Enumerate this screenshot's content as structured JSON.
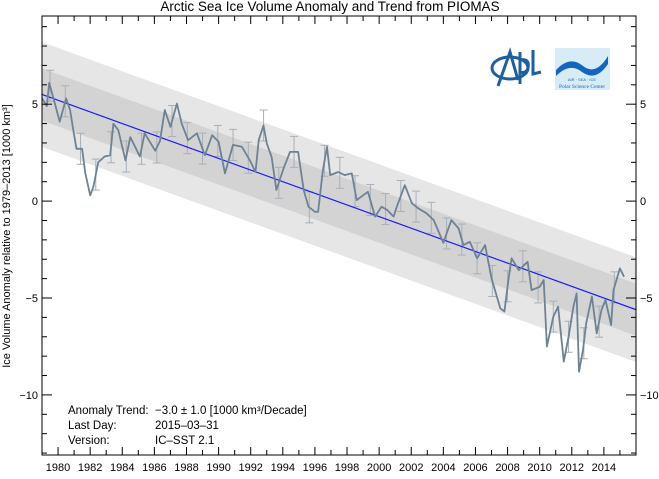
{
  "chart_data": {
    "type": "line",
    "title": "Arctic Sea Ice Volume Anomaly and Trend from PIOMAS",
    "ylabel": "Ice Volume Anomaly relative to 1979–2013 [1000 km³]",
    "xlabel": "",
    "xlim": [
      1979,
      2016
    ],
    "ylim": [
      -13.1,
      9.55
    ],
    "x_tick_labels": [
      "1980",
      "1982",
      "1984",
      "1986",
      "1988",
      "1990",
      "1992",
      "1994",
      "1996",
      "1998",
      "2000",
      "2002",
      "2004",
      "2006",
      "2008",
      "2010",
      "2012",
      "2014"
    ],
    "y_tick_labels": [
      "5",
      "0",
      "−5",
      "−10"
    ],
    "y_tick_values": [
      5,
      0,
      -5,
      -10
    ],
    "grid": false,
    "colors": {
      "anomaly": "#6e8294",
      "trend": "#1a1aff",
      "inner_band": "#d3d3d3",
      "outer_band": "#e6e6e6",
      "error_bar": "#a8b0b8"
    },
    "trend": {
      "start_year": 1979,
      "start_value": 5.5,
      "slope_per_decade": -3.0,
      "inner_band": 1.35,
      "outer_band": 2.7
    },
    "error_bar_halfwidth": 0.8,
    "series": [
      {
        "x": [
          1979.0,
          1979.3,
          1979.45,
          1979.8,
          1980.1,
          1980.5,
          1980.75,
          1980.95,
          1981.15,
          1981.5,
          1981.7,
          1982.0,
          1982.2,
          1982.5,
          1982.9,
          1983.25,
          1983.45,
          1983.75,
          1984.2,
          1984.5,
          1985.1,
          1985.4,
          1986.05,
          1986.35,
          1986.65,
          1987.0,
          1987.4,
          1987.7,
          1988.1,
          1988.65,
          1989.15,
          1989.6,
          1990.0,
          1990.4,
          1990.9,
          1991.45,
          1991.95,
          1992.3,
          1992.5,
          1992.8,
          1993.0,
          1993.3,
          1993.6,
          1994.05,
          1994.45,
          1994.95,
          1995.3,
          1995.6,
          1996.0,
          1996.2,
          1996.5,
          1996.75,
          1996.95,
          1997.45,
          1997.85,
          1998.3,
          1998.6,
          1999.0,
          1999.3,
          1999.75,
          2000.15,
          2000.5,
          2000.9,
          2001.1,
          2001.6,
          2002.05,
          2002.45,
          2002.95,
          2003.4,
          2004.0,
          2004.2,
          2004.5,
          2004.95,
          2005.25,
          2005.65,
          2006.1,
          2006.6,
          2007.0,
          2007.55,
          2007.8,
          2008.05,
          2008.25,
          2008.7,
          2009.25,
          2009.5,
          2010.0,
          2010.25,
          2010.45,
          2010.85,
          2011.15,
          2011.5,
          2011.8,
          2012.1,
          2012.3,
          2012.45,
          2012.7,
          2012.9,
          2013.25,
          2013.55,
          2013.85,
          2014.1,
          2014.45,
          2014.6,
          2015.0,
          2015.25
        ],
        "values": [
          5.3,
          4.9,
          6.1,
          5.05,
          4.1,
          5.3,
          4.7,
          3.66,
          2.7,
          2.7,
          1.44,
          0.3,
          0.74,
          2.0,
          2.3,
          2.37,
          4.0,
          3.66,
          2.1,
          3.3,
          2.3,
          3.5,
          2.6,
          3.1,
          4.7,
          3.83,
          5.03,
          4.0,
          3.14,
          3.5,
          2.37,
          3.4,
          3.06,
          1.43,
          2.9,
          2.8,
          2.1,
          1.5,
          3.14,
          3.9,
          2.97,
          2.28,
          0.57,
          1.69,
          2.54,
          2.54,
          0.57,
          -0.29,
          -0.55,
          -0.55,
          1.6,
          2.8,
          1.34,
          1.5,
          1.34,
          1.43,
          0.05,
          0.3,
          0.48,
          -0.8,
          -0.29,
          -0.46,
          -0.8,
          -0.29,
          0.82,
          -0.12,
          -0.38,
          -0.63,
          -0.98,
          -2.15,
          -1.67,
          -0.98,
          -1.41,
          -2.27,
          -2.1,
          -2.95,
          -2.27,
          -3.98,
          -5.53,
          -5.7,
          -4.07,
          -2.95,
          -3.56,
          -3.13,
          -4.59,
          -4.42,
          -4.07,
          -7.5,
          -5.96,
          -5.45,
          -8.28,
          -7.0,
          -5.45,
          -4.76,
          -8.8,
          -7.68,
          -6.3,
          -4.93,
          -6.82,
          -5.62,
          -5.1,
          -6.4,
          -4.59,
          -3.47,
          -3.9
        ]
      }
    ]
  },
  "annotation": {
    "trend_label": "Anomaly Trend:",
    "trend_value": "−3.0 ± 1.0 [1000 km³/Decade]",
    "last_day_label": "Last Day:",
    "last_day_value": "2015–03–31",
    "version_label": "Version:",
    "version_value": "IC–SST 2.1"
  },
  "logos": {
    "apl": "APL",
    "psc_tagline": "AIR · SEA · ICE",
    "psc_name": "Polar Science Center"
  }
}
